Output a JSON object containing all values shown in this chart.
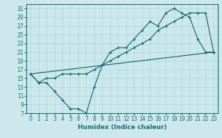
{
  "xlabel": "Humidex (Indice chaleur)",
  "bg_color": "#cce8ec",
  "line_color": "#1a6b6b",
  "grid_color": "#aad4d8",
  "xlim": [
    -0.5,
    23.5
  ],
  "ylim": [
    7,
    32
  ],
  "xticks": [
    0,
    1,
    2,
    3,
    4,
    5,
    6,
    7,
    8,
    9,
    10,
    11,
    12,
    13,
    14,
    15,
    16,
    17,
    18,
    19,
    20,
    21,
    22,
    23
  ],
  "yticks": [
    7,
    9,
    11,
    13,
    15,
    17,
    19,
    21,
    23,
    25,
    27,
    29,
    31
  ],
  "line1_x": [
    0,
    1,
    2,
    3,
    4,
    5,
    6,
    7,
    8,
    9,
    10,
    11,
    12,
    13,
    14,
    15,
    16,
    17,
    18,
    19,
    20,
    21,
    22,
    23
  ],
  "line1_y": [
    16,
    14,
    14,
    12,
    10,
    8,
    8,
    7,
    13,
    18,
    21,
    22,
    22,
    24,
    26,
    28,
    27,
    30,
    31,
    30,
    29,
    24,
    21,
    21
  ],
  "line2_x": [
    0,
    1,
    2,
    3,
    4,
    5,
    6,
    7,
    8,
    9,
    10,
    11,
    12,
    13,
    14,
    15,
    16,
    17,
    18,
    19,
    20,
    21,
    22,
    23
  ],
  "line2_y": [
    16,
    14,
    15,
    15,
    16,
    16,
    16,
    16,
    17,
    18,
    19,
    20,
    21,
    22,
    23,
    24,
    26,
    27,
    28,
    29,
    30,
    30,
    30,
    21
  ],
  "line3_x": [
    0,
    23
  ],
  "line3_y": [
    16,
    21
  ],
  "tick_fontsize": 5.5,
  "xlabel_fontsize": 6.5
}
